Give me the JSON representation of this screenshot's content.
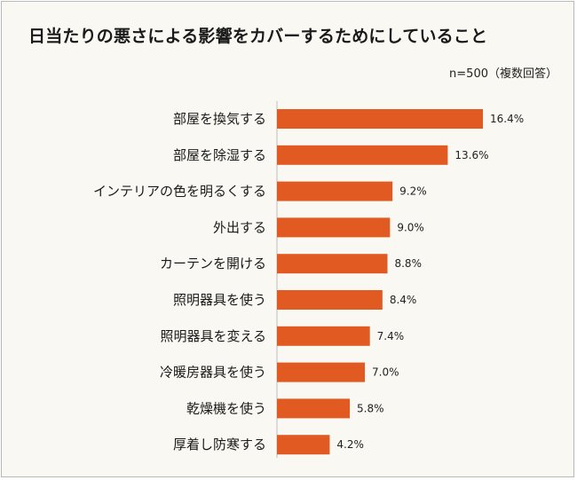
{
  "chart_data": {
    "type": "bar",
    "orientation": "horizontal",
    "title": "日当たりの悪さによる影響をカバーするためにしていること",
    "note": "n=500（複数回答）",
    "categories": [
      "部屋を換気する",
      "部屋を除湿する",
      "インテリアの色を明るくする",
      "外出する",
      "カーテンを開ける",
      "照明器具を使う",
      "照明器具を変える",
      "冷暖房器具を使う",
      "乾燥機を使う",
      "厚着し防寒する"
    ],
    "values": [
      16.4,
      13.6,
      9.2,
      9.0,
      8.8,
      8.4,
      7.4,
      7.0,
      5.8,
      4.2
    ],
    "value_labels": [
      "16.4%",
      "13.6%",
      "9.2%",
      "9.0%",
      "8.8%",
      "8.4%",
      "7.4%",
      "7.0%",
      "5.8%",
      "4.2%"
    ],
    "xlim": [
      0,
      16.4
    ],
    "grid": false,
    "legend": "none",
    "bar_color": "#e05a22",
    "axis_color": "#bdbdbd"
  }
}
